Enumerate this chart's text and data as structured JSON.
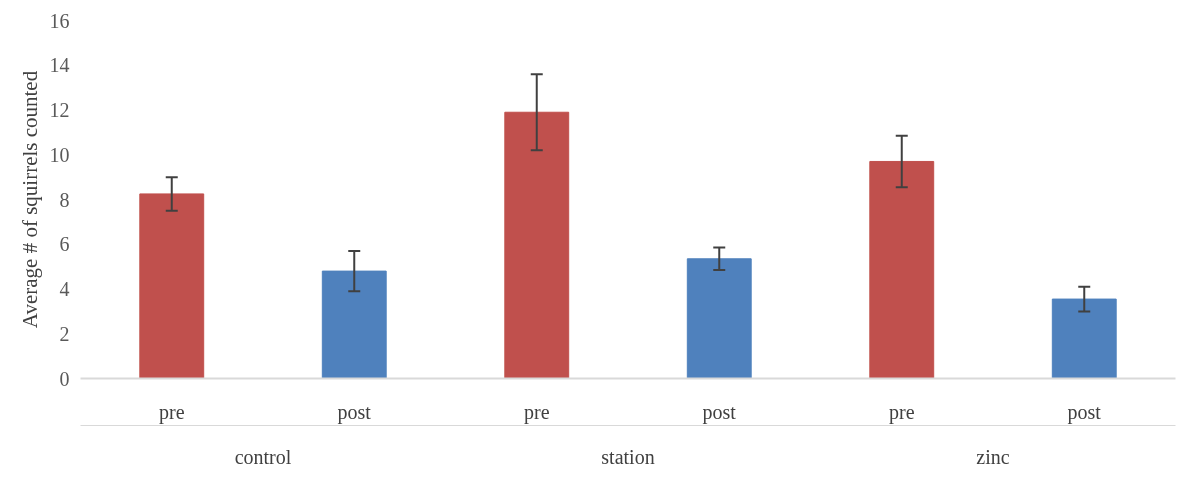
{
  "chart_data": {
    "type": "bar",
    "ylabel": "Average # of squirrels counted",
    "categories": [
      "pre",
      "post",
      "pre",
      "post",
      "pre",
      "post"
    ],
    "values": [
      8.25,
      4.8,
      11.9,
      5.35,
      9.7,
      3.55
    ],
    "colors": [
      "#c0504d",
      "#4f81bd",
      "#c0504d",
      "#4f81bd",
      "#c0504d",
      "#4f81bd"
    ],
    "errors": [
      0.75,
      0.9,
      1.7,
      0.5,
      1.15,
      0.55
    ],
    "annotations": [
      "control",
      "station",
      "zinc"
    ],
    "ylim": [
      0,
      16
    ],
    "yticks": [
      0,
      2,
      4,
      6,
      8,
      10,
      12,
      14,
      16
    ],
    "grid": false
  }
}
